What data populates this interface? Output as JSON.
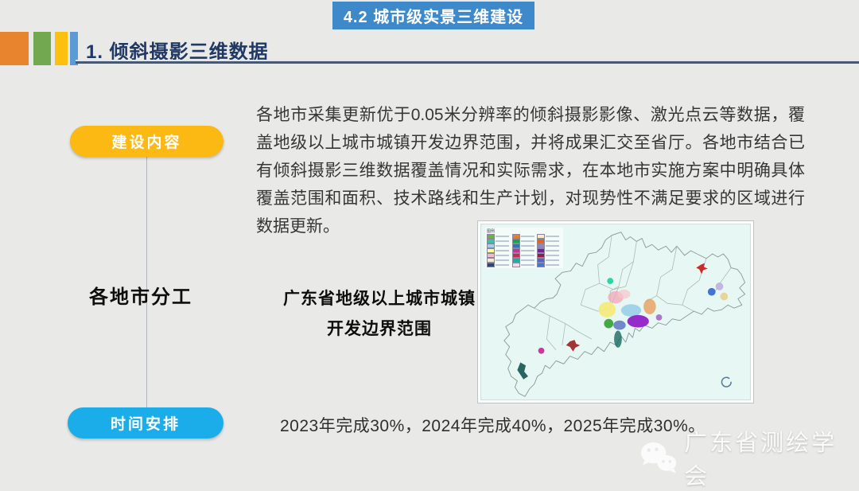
{
  "page": {
    "bg_color": "#e9e9e7"
  },
  "header": {
    "badge": "4.2 城市级实景三维建设",
    "badge_color": "#3e89c9",
    "section_title": "1. 倾斜摄影三维数据",
    "section_title_color": "#203864",
    "deco_colors": [
      "#e8832e",
      "#71a850",
      "#fcc10e",
      "#5b9bd5"
    ]
  },
  "content": {
    "build_label": "建设内容",
    "build_label_color": "#fcb813",
    "paragraph": "各地市采集更新优于0.05米分辨率的倾斜摄影影像、激光点云等数据，覆盖地级以上城市城镇开发边界范围，并将成果汇交至省厅。各地市结合已有倾斜摄影三维数据覆盖情况和实际需求，在本地市实施方案中明确具体覆盖范围和面积、技术路线和生产计划，对现势性不满足要求的区域进行数据更新。",
    "division_label": "各地市分工",
    "map_caption_line1": "广东省地级以上城市城镇",
    "map_caption_line2": "开发边界范围",
    "time_label": "时间安排",
    "time_label_color": "#1badea",
    "timeline": "2023年完成30%，2024年完成40%，2025年完成30%。"
  },
  "map": {
    "legend_title": "图例",
    "legend_colors": [
      "#6fae4b",
      "#ec7d2f",
      "#fde9c8",
      "#35c2b1",
      "#11a653",
      "#e2622d",
      "#a8cbe8",
      "#2f74b5",
      "#9184c4",
      "#fafc9e",
      "#cc2f9a",
      "#73209e",
      "#f6b8c8",
      "#c92850",
      "#8f1c4e",
      "#f3ecd2",
      "#10b3a2",
      "#5763c5",
      "#2a4778",
      "#f8d7e6",
      "#4a74d4"
    ]
  },
  "footer": {
    "watermark": "广东省测绘学会"
  }
}
